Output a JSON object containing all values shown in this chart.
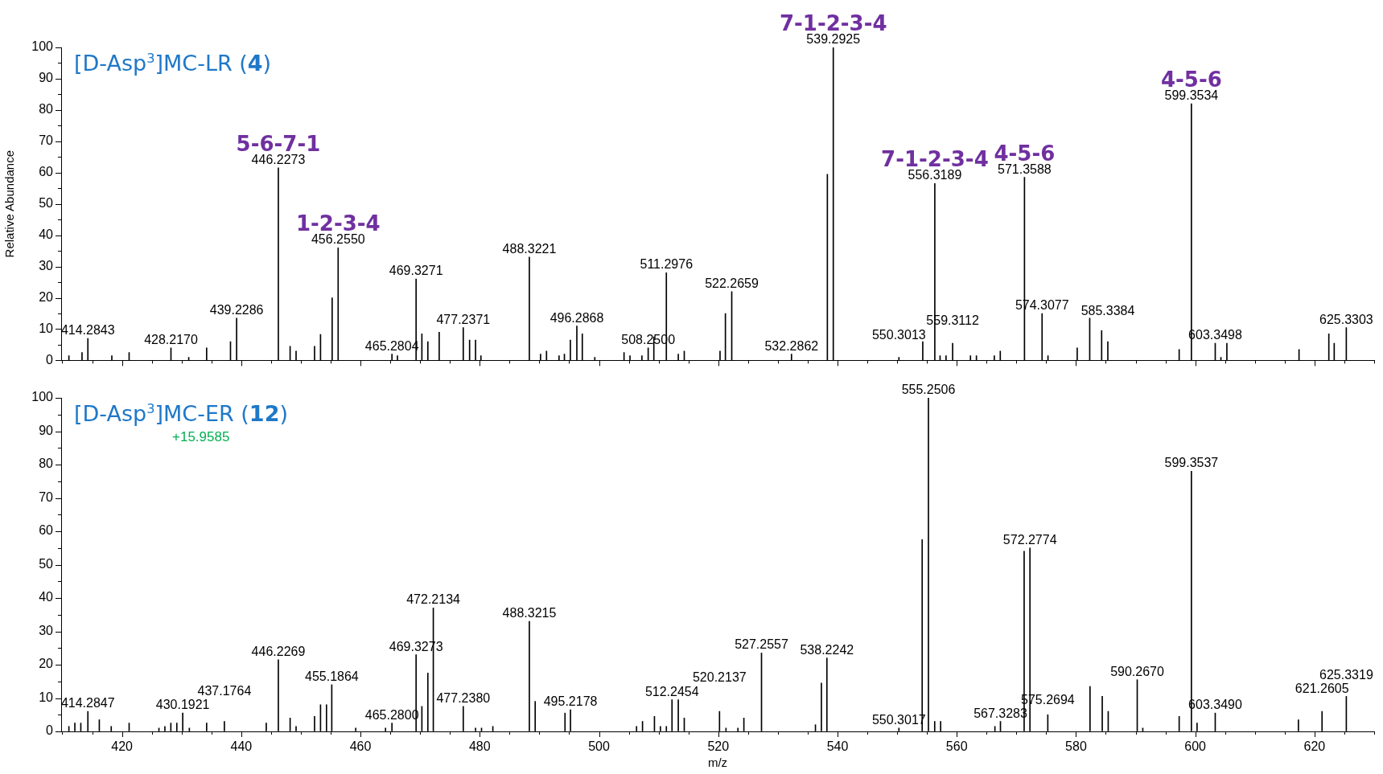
{
  "chart_data": [
    {
      "type": "bar",
      "title": "[D-Asp$^{3}$]MC-LR (4)",
      "ylabel": "Relative Abundance",
      "tick_labels": "y",
      "grid": false,
      "legend": false,
      "xlim": [
        409.8,
        630
      ],
      "ylim": [
        0,
        100
      ],
      "xticks": [
        {
          "value": 410,
          "label": null
        },
        {
          "value": 415,
          "label": null
        },
        420,
        {
          "value": 425,
          "label": null
        },
        {
          "value": 430,
          "label": null
        },
        {
          "value": 435,
          "label": null
        },
        440,
        {
          "value": 445,
          "label": null
        },
        {
          "value": 450,
          "label": null
        },
        {
          "value": 455,
          "label": null
        },
        460,
        {
          "value": 465,
          "label": null
        },
        {
          "value": 470,
          "label": null
        },
        {
          "value": 475,
          "label": null
        },
        480,
        {
          "value": 485,
          "label": null
        },
        {
          "value": 490,
          "label": null
        },
        {
          "value": 495,
          "label": null
        },
        500,
        {
          "value": 505,
          "label": null
        },
        {
          "value": 510,
          "label": null
        },
        {
          "value": 515,
          "label": null
        },
        520,
        {
          "value": 525,
          "label": null
        },
        {
          "value": 530,
          "label": null
        },
        {
          "value": 535,
          "label": null
        },
        540,
        {
          "value": 545,
          "label": null
        },
        {
          "value": 550,
          "label": null
        },
        {
          "value": 555,
          "label": null
        },
        560,
        {
          "value": 565,
          "label": null
        },
        {
          "value": 570,
          "label": null
        },
        {
          "value": 575,
          "label": null
        },
        580,
        {
          "value": 585,
          "label": null
        },
        {
          "value": 590,
          "label": null
        },
        {
          "value": 595,
          "label": null
        },
        600,
        {
          "value": 605,
          "label": null
        },
        {
          "value": 610,
          "label": null
        },
        {
          "value": 615,
          "label": null
        },
        620,
        {
          "value": 625,
          "label": null
        },
        {
          "value": 630,
          "label": null
        }
      ],
      "yticks": [
        0,
        {
          "value": 5,
          "label": null
        },
        10,
        {
          "value": 15,
          "label": null
        },
        20,
        {
          "value": 25,
          "label": null
        },
        30,
        {
          "value": 35,
          "label": null
        },
        40,
        {
          "value": 45,
          "label": null
        },
        50,
        {
          "value": 55,
          "label": null
        },
        60,
        {
          "value": 65,
          "label": null
        },
        70,
        {
          "value": 75,
          "label": null
        },
        80,
        {
          "value": 85,
          "label": null
        },
        90,
        {
          "value": 95,
          "label": null
        },
        100
      ],
      "series": [
        {
          "color": "#000000",
          "x": [
            411.1,
            413.3,
            414.2843,
            418.3,
            421.2,
            428.217,
            431.2,
            434.2,
            438.2,
            439.2286,
            446.2273,
            448.2,
            449.2,
            452.3,
            453.3,
            455.25,
            456.255,
            465.2804,
            466.2,
            469.3271,
            470.3,
            471.3,
            473.2,
            477.2371,
            478.3,
            479.3,
            480.2,
            488.3221,
            490.2,
            491.2,
            493.3,
            494.2,
            495.2,
            496.2868,
            497.2,
            499.3,
            504.2,
            505.2,
            507.2,
            508.25,
            509.2,
            511.2976,
            513.3,
            514.3,
            520.3,
            521.2,
            522.2659,
            532.2862,
            538.3,
            539.2925,
            550.3013,
            554.3,
            556.3189,
            557.2,
            558.2,
            559.3112,
            562.3,
            563.3,
            566.3,
            567.3,
            571.3588,
            574.3077,
            575.3,
            580.2,
            582.3,
            584.3,
            585.3384,
            597.3,
            599.3534,
            603.3498,
            604.3,
            605.3,
            617.4,
            622.4,
            623.3,
            625.3303
          ],
          "values": [
            1.5,
            2.5,
            7,
            1.5,
            2.5,
            4,
            1,
            4,
            6,
            13.5,
            61.5,
            4.5,
            3,
            4.5,
            8.3,
            20,
            36,
            2,
            1.5,
            26,
            8.5,
            6,
            9,
            10.5,
            6.5,
            6.5,
            1.5,
            33,
            2,
            3,
            1.5,
            2,
            6.5,
            11,
            8.5,
            1,
            2.5,
            1.5,
            1.5,
            4,
            7.5,
            28,
            2,
            3,
            3,
            15,
            22,
            2,
            59.5,
            100,
            1,
            6,
            56.5,
            1.5,
            1.5,
            5.5,
            1.5,
            1.5,
            1.5,
            3,
            58.5,
            15,
            1.5,
            4,
            13.5,
            9.5,
            6,
            3.5,
            82,
            5.5,
            1,
            5.5,
            3.5,
            8.5,
            5.5,
            10.5
          ]
        }
      ],
      "annotations": [
        {
          "text": "414.2843",
          "x": 414.2843,
          "y": 7
        },
        {
          "text": "428.2170",
          "x": 428.217,
          "y": 4
        },
        {
          "text": "439.2286",
          "x": 439.2286,
          "y": 13.5
        },
        {
          "text": "446.2273",
          "x": 446.2273,
          "y": 61.5
        },
        {
          "text": "456.2550",
          "x": 456.255,
          "y": 36
        },
        {
          "text": "465.2804",
          "x": 465.2804,
          "y": 2
        },
        {
          "text": "469.3271",
          "x": 469.3271,
          "y": 26
        },
        {
          "text": "477.2371",
          "x": 477.2371,
          "y": 10.5
        },
        {
          "text": "488.3221",
          "x": 488.3221,
          "y": 33
        },
        {
          "text": "496.2868",
          "x": 496.2868,
          "y": 11
        },
        {
          "text": "508.2500",
          "x": 508.25,
          "y": 4
        },
        {
          "text": "511.2976",
          "x": 511.2976,
          "y": 28
        },
        {
          "text": "522.2659",
          "x": 522.2659,
          "y": 22
        },
        {
          "text": "532.2862",
          "x": 532.2862,
          "y": 2
        },
        {
          "text": "539.2925",
          "x": 539.2925,
          "y": 100
        },
        {
          "text": "550.3013",
          "x": 550.3013,
          "y": 1
        },
        {
          "text": "556.3189",
          "x": 556.3189,
          "y": 56.5
        },
        {
          "text": "559.3112",
          "x": 559.3112,
          "y": 5.5
        },
        {
          "text": "571.3588",
          "x": 571.3588,
          "y": 58.5
        },
        {
          "text": "574.3077",
          "x": 574.3077,
          "y": 15
        },
        {
          "text": "585.3384",
          "x": 585.3384,
          "y": 6
        },
        {
          "text": "599.3534",
          "x": 599.3534,
          "y": 82
        },
        {
          "text": "603.3498",
          "x": 603.3498,
          "y": 5.5
        },
        {
          "text": "625.3303",
          "x": 625.3303,
          "y": 10.5
        },
        {
          "text": "5-6-7-1",
          "x": 446.2273,
          "y": 61.5
        },
        {
          "text": "1-2-3-4",
          "x": 456.255,
          "y": 36
        },
        {
          "text": "7-1-2-3-4",
          "x": 539.2925,
          "y": 100
        },
        {
          "text": "7-1-2-3-4",
          "x": 556.3189,
          "y": 56.5
        },
        {
          "text": "4-5-6",
          "x": 571.3588,
          "y": 58.5
        },
        {
          "text": "4-5-6",
          "x": 599.3534,
          "y": 82
        }
      ]
    },
    {
      "type": "bar",
      "title": "[D-Asp$^{3}$]MC-ER (12)",
      "xlabel": "m/z",
      "grid": false,
      "legend": false,
      "xlim": [
        409.8,
        630
      ],
      "ylim": [
        0,
        100
      ],
      "xticks": [
        {
          "value": 410,
          "label": null
        },
        {
          "value": 415,
          "label": null
        },
        420,
        {
          "value": 425,
          "label": null
        },
        {
          "value": 430,
          "label": null
        },
        {
          "value": 435,
          "label": null
        },
        440,
        {
          "value": 445,
          "label": null
        },
        {
          "value": 450,
          "label": null
        },
        {
          "value": 455,
          "label": null
        },
        460,
        {
          "value": 465,
          "label": null
        },
        {
          "value": 470,
          "label": null
        },
        {
          "value": 475,
          "label": null
        },
        480,
        {
          "value": 485,
          "label": null
        },
        {
          "value": 490,
          "label": null
        },
        {
          "value": 495,
          "label": null
        },
        500,
        {
          "value": 505,
          "label": null
        },
        {
          "value": 510,
          "label": null
        },
        {
          "value": 515,
          "label": null
        },
        520,
        {
          "value": 525,
          "label": null
        },
        {
          "value": 530,
          "label": null
        },
        {
          "value": 535,
          "label": null
        },
        540,
        {
          "value": 545,
          "label": null
        },
        {
          "value": 550,
          "label": null
        },
        {
          "value": 555,
          "label": null
        },
        560,
        {
          "value": 565,
          "label": null
        },
        {
          "value": 570,
          "label": null
        },
        {
          "value": 575,
          "label": null
        },
        580,
        {
          "value": 585,
          "label": null
        },
        {
          "value": 590,
          "label": null
        },
        {
          "value": 595,
          "label": null
        },
        600,
        {
          "value": 605,
          "label": null
        },
        {
          "value": 610,
          "label": null
        },
        {
          "value": 615,
          "label": null
        },
        620,
        {
          "value": 625,
          "label": null
        },
        {
          "value": 630,
          "label": null
        }
      ],
      "yticks": [
        0,
        {
          "value": 5,
          "label": null
        },
        10,
        {
          "value": 15,
          "label": null
        },
        20,
        {
          "value": 25,
          "label": null
        },
        30,
        {
          "value": 35,
          "label": null
        },
        40,
        {
          "value": 45,
          "label": null
        },
        50,
        {
          "value": 55,
          "label": null
        },
        60,
        {
          "value": 65,
          "label": null
        },
        70,
        {
          "value": 75,
          "label": null
        },
        80,
        {
          "value": 85,
          "label": null
        },
        90,
        {
          "value": 95,
          "label": null
        },
        100
      ],
      "series": [
        {
          "color": "#000000",
          "x": [
            411.1,
            412.1,
            413.1,
            414.2847,
            416.2,
            418.2,
            421.2,
            426.2,
            427.2,
            428.2,
            429.2,
            430.1921,
            431.3,
            434.2,
            437.1764,
            444.2,
            446.2269,
            448.2,
            449.2,
            452.3,
            453.3,
            454.3,
            455.1864,
            459.2,
            464.2,
            465.28,
            469.3273,
            470.3,
            471.3,
            472.2134,
            477.238,
            479.3,
            480.3,
            482.2,
            488.3215,
            489.3,
            494.3,
            495.2178,
            506.3,
            507.3,
            509.3,
            510.3,
            511.3,
            512.2454,
            513.3,
            514.3,
            520.2137,
            521.3,
            523.3,
            524.3,
            527.2557,
            536.3,
            537.3,
            538.2242,
            550.3017,
            554.2,
            555.2506,
            556.3,
            557.3,
            566.4,
            567.3283,
            571.3,
            572.2774,
            575.2694,
            582.35,
            584.4,
            585.4,
            590.267,
            591.2,
            597.3,
            599.3537,
            600.3,
            603.349,
            617.3,
            621.2605,
            625.3319
          ],
          "values": [
            1.5,
            2.5,
            2.5,
            6,
            3.5,
            1.5,
            2.5,
            1,
            1.5,
            2.5,
            2.5,
            5.5,
            1,
            2.5,
            3,
            2.5,
            21.5,
            4,
            1.5,
            4.5,
            8,
            8,
            14,
            1,
            1,
            2.5,
            23,
            7.5,
            17.5,
            37,
            7.5,
            1,
            1,
            1.5,
            33,
            9,
            5.5,
            6.5,
            1.5,
            3,
            4.5,
            1.5,
            1.5,
            9.5,
            9.5,
            4,
            6,
            1,
            1,
            4,
            23.5,
            2,
            14.5,
            22,
            1,
            57.5,
            100,
            3,
            3,
            1.5,
            3,
            54,
            55,
            5,
            13.5,
            10.5,
            6,
            15.5,
            1,
            4.5,
            78,
            2.5,
            5.5,
            3.5,
            6,
            10.5
          ]
        }
      ],
      "annotations": [
        {
          "text": "414.2847",
          "x": 414.2847,
          "y": 6
        },
        {
          "text": "430.1921",
          "x": 430.1921,
          "y": 5.5
        },
        {
          "text": "437.1764",
          "x": 437.1764,
          "y": 3
        },
        {
          "text": "446.2269",
          "x": 446.2269,
          "y": 21.5
        },
        {
          "text": "455.1864",
          "x": 455.1864,
          "y": 14
        },
        {
          "text": "465.2800",
          "x": 465.28,
          "y": 2.5
        },
        {
          "text": "469.3273",
          "x": 469.3273,
          "y": 23
        },
        {
          "text": "472.2134",
          "x": 472.2134,
          "y": 37
        },
        {
          "text": "477.2380",
          "x": 477.238,
          "y": 7.5
        },
        {
          "text": "488.3215",
          "x": 488.3215,
          "y": 33
        },
        {
          "text": "495.2178",
          "x": 495.2178,
          "y": 6.5
        },
        {
          "text": "512.2454",
          "x": 512.2454,
          "y": 9.5
        },
        {
          "text": "520.2137",
          "x": 520.2137,
          "y": 6
        },
        {
          "text": "527.2557",
          "x": 527.2557,
          "y": 23.5
        },
        {
          "text": "538.2242",
          "x": 538.2242,
          "y": 22
        },
        {
          "text": "550.3017",
          "x": 550.3017,
          "y": 1
        },
        {
          "text": "555.2506",
          "x": 555.2506,
          "y": 100
        },
        {
          "text": "567.3283",
          "x": 567.3283,
          "y": 3
        },
        {
          "text": "572.2774",
          "x": 572.2774,
          "y": 55
        },
        {
          "text": "575.2694",
          "x": 575.2694,
          "y": 5
        },
        {
          "text": "590.2670",
          "x": 590.267,
          "y": 15.5
        },
        {
          "text": "599.3537",
          "x": 599.3537,
          "y": 78
        },
        {
          "text": "603.3490",
          "x": 603.349,
          "y": 5.5
        },
        {
          "text": "621.2605",
          "x": 621.2605,
          "y": 6
        },
        {
          "text": "625.3319",
          "x": 625.3319,
          "y": 10.5
        },
        "+15.9585"
      ]
    }
  ]
}
